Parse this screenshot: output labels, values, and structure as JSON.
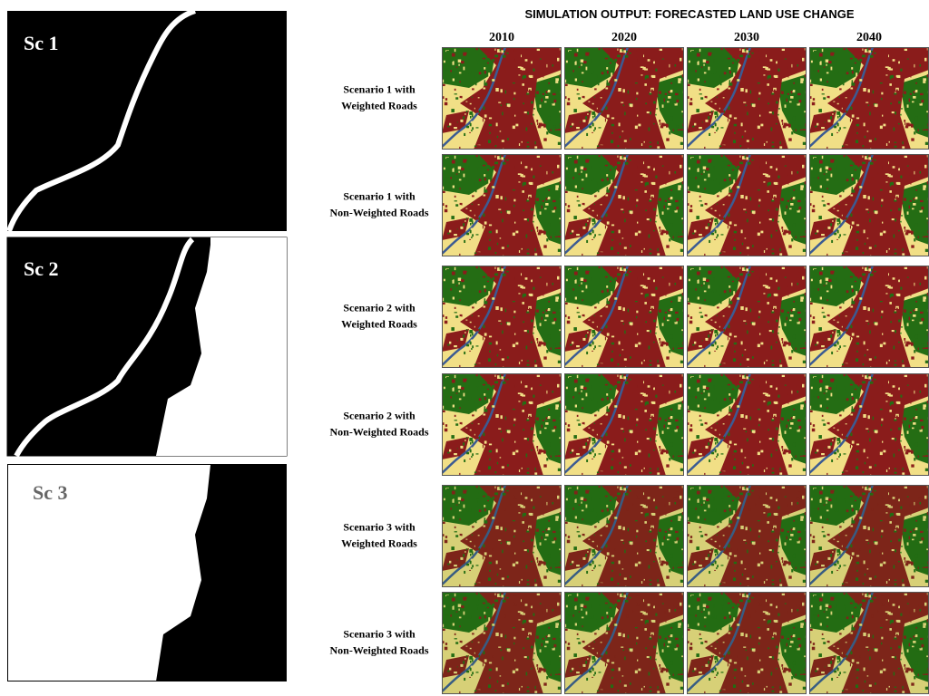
{
  "panels": [
    {
      "label": "Sc 1"
    },
    {
      "label": "Sc 2"
    },
    {
      "label": "Sc 3"
    }
  ],
  "title": "SIMULATION OUTPUT: FORECASTED LAND USE CHANGE",
  "years": [
    "2010",
    "2020",
    "2030",
    "2040"
  ],
  "rows": [
    {
      "label": [
        "Scenario 1 with",
        "Weighted Roads"
      ]
    },
    {
      "label": [
        "Scenario 1 with",
        "Non-Weighted Roads"
      ]
    },
    {
      "label": [
        "Scenario 2 with",
        "Weighted Roads"
      ]
    },
    {
      "label": [
        "Scenario 2 with",
        "Non-Weighted Roads"
      ]
    },
    {
      "label": [
        "Scenario 3 with",
        "Weighted Roads"
      ]
    },
    {
      "label": [
        "Scenario 3 with",
        "Non-Weighted Roads"
      ]
    }
  ]
}
